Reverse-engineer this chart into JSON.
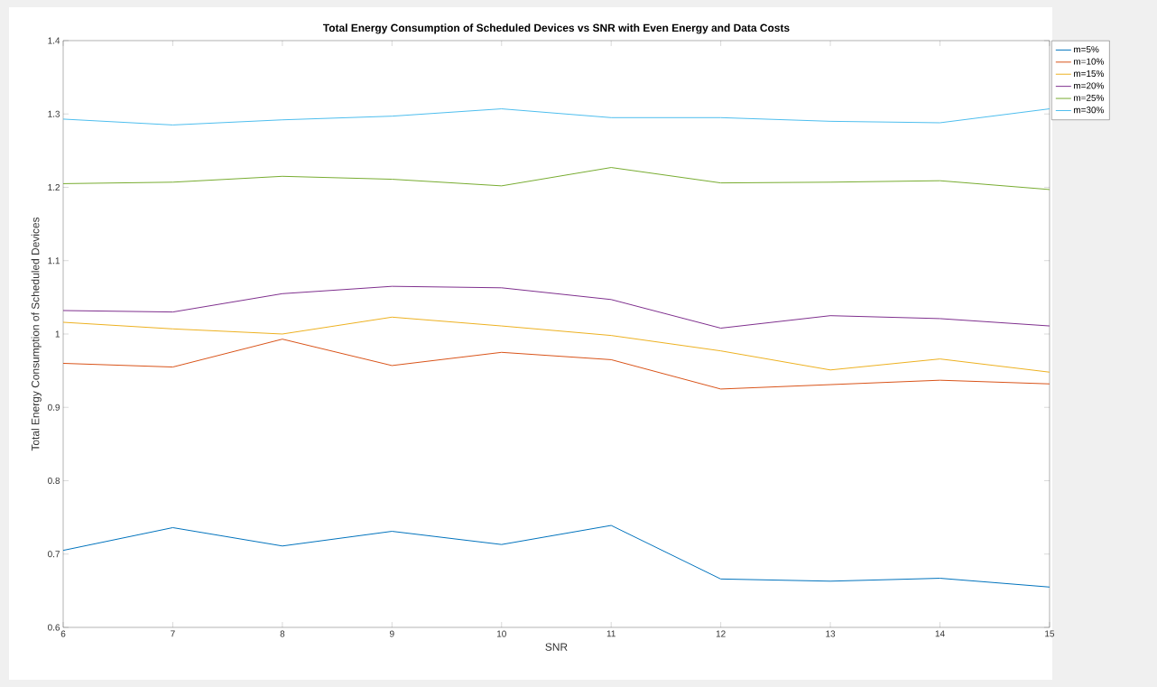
{
  "chart_data": {
    "type": "line",
    "title": "Total Energy Consumption of Scheduled Devices vs SNR with Even Energy and Data Costs",
    "xlabel": "SNR",
    "ylabel": "Total Energy Consumption of Scheduled Devices",
    "x": [
      6,
      7,
      8,
      9,
      10,
      11,
      12,
      13,
      14,
      15
    ],
    "series": [
      {
        "name": "m=5%",
        "color": "#0072bd",
        "values": [
          0.705,
          0.736,
          0.711,
          0.731,
          0.713,
          0.739,
          0.666,
          0.663,
          0.667,
          0.655
        ]
      },
      {
        "name": "m=10%",
        "color": "#d95319",
        "values": [
          0.96,
          0.955,
          0.993,
          0.957,
          0.975,
          0.965,
          0.925,
          0.931,
          0.937,
          0.932
        ]
      },
      {
        "name": "m=15%",
        "color": "#edb120",
        "values": [
          1.016,
          1.007,
          1.0,
          1.023,
          1.011,
          0.998,
          0.977,
          0.951,
          0.966,
          0.948
        ]
      },
      {
        "name": "m=20%",
        "color": "#7e2f8e",
        "values": [
          1.032,
          1.03,
          1.055,
          1.065,
          1.063,
          1.047,
          1.008,
          1.025,
          1.021,
          1.011
        ]
      },
      {
        "name": "m=25%",
        "color": "#77ac30",
        "values": [
          1.205,
          1.207,
          1.215,
          1.211,
          1.202,
          1.227,
          1.206,
          1.207,
          1.209,
          1.197
        ]
      },
      {
        "name": "m=30%",
        "color": "#4dbeee",
        "values": [
          1.293,
          1.285,
          1.292,
          1.297,
          1.307,
          1.295,
          1.295,
          1.29,
          1.288,
          1.307
        ]
      }
    ],
    "xlim": [
      6,
      15
    ],
    "ylim": [
      0.6,
      1.4
    ],
    "xticks": [
      6,
      7,
      8,
      9,
      10,
      11,
      12,
      13,
      14,
      15
    ],
    "yticks": [
      0.6,
      0.7,
      0.8,
      0.9,
      1,
      1.1,
      1.2,
      1.3,
      1.4
    ],
    "legend": "top right",
    "grid": false,
    "marker": "none",
    "line_style": "solid"
  }
}
